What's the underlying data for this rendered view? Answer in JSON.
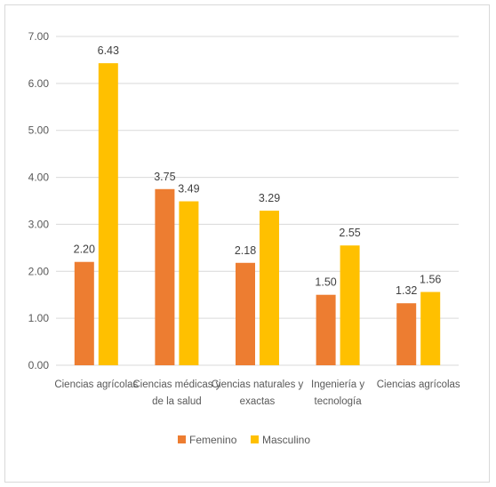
{
  "chart_data": {
    "type": "bar",
    "categories": [
      [
        "Ciencias agrícolas"
      ],
      [
        "Ciencias médicas y",
        "de la salud"
      ],
      [
        "Ciencias naturales y",
        "exactas"
      ],
      [
        "Ingeniería y",
        "tecnología"
      ],
      [
        "Ciencias agrícolas"
      ]
    ],
    "series": [
      {
        "name": "Femenino",
        "color": "#ED7D31",
        "values": [
          2.2,
          3.75,
          2.18,
          1.5,
          1.32
        ],
        "labels": [
          "2.20",
          "3.75",
          "2.18",
          "1.50",
          "1.32"
        ]
      },
      {
        "name": "Masculino",
        "color": "#FFC000",
        "values": [
          6.43,
          3.49,
          3.29,
          2.55,
          1.56
        ],
        "labels": [
          "6.43",
          "3.49",
          "3.29",
          "2.55",
          "1.56"
        ]
      }
    ],
    "yticks": [
      "0.00",
      "1.00",
      "2.00",
      "3.00",
      "4.00",
      "5.00",
      "6.00",
      "7.00"
    ],
    "ylim": [
      0,
      7
    ],
    "grid": true,
    "legend_position": "bottom"
  }
}
